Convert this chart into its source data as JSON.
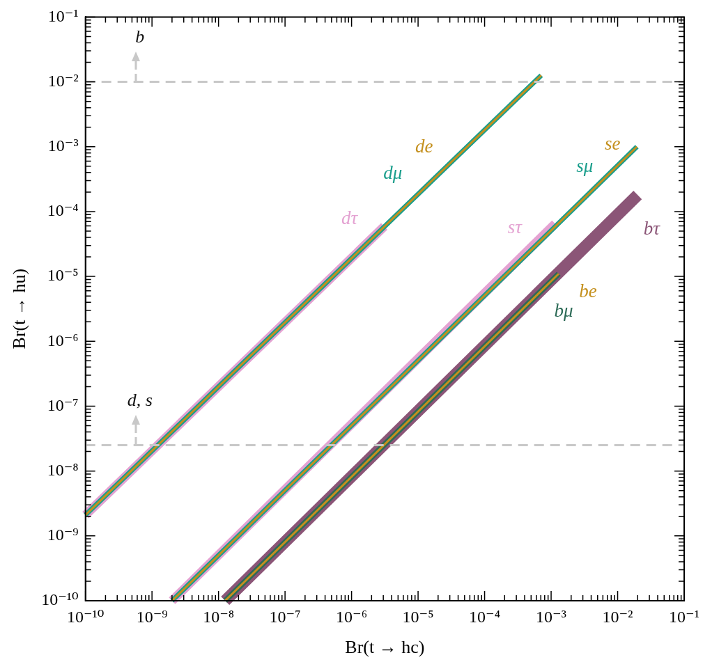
{
  "chart_data": {
    "type": "line",
    "xlabel": "Br(t → hc)",
    "ylabel": "Br(t → hu)",
    "log": "xy",
    "legend": false,
    "grid": false,
    "marker": "none",
    "line_style": "solid",
    "xlim": [
      1e-10,
      0.1
    ],
    "ylim": [
      1e-10,
      0.1
    ],
    "xticks": [
      {
        "value": 1e-10,
        "label": "10⁻¹⁰"
      },
      {
        "value": 1e-09,
        "label": "10⁻⁹"
      },
      {
        "value": 1e-08,
        "label": "10⁻⁸"
      },
      {
        "value": 1e-07,
        "label": "10⁻⁷"
      },
      {
        "value": 1e-06,
        "label": "10⁻⁶"
      },
      {
        "value": 1e-05,
        "label": "10⁻⁵"
      },
      {
        "value": 0.0001,
        "label": "10⁻⁴"
      },
      {
        "value": 0.001,
        "label": "10⁻³"
      },
      {
        "value": 0.01,
        "label": "10⁻²"
      },
      {
        "value": 0.1,
        "label": "10⁻¹"
      }
    ],
    "yticks": [
      {
        "value": 1e-10,
        "label": "10⁻¹⁰"
      },
      {
        "value": 1e-09,
        "label": "10⁻⁹"
      },
      {
        "value": 1e-08,
        "label": "10⁻⁸"
      },
      {
        "value": 1e-07,
        "label": "10⁻⁷"
      },
      {
        "value": 1e-06,
        "label": "10⁻⁶"
      },
      {
        "value": 1e-05,
        "label": "10⁻⁵"
      },
      {
        "value": 0.0001,
        "label": "10⁻⁴"
      },
      {
        "value": 0.001,
        "label": "10⁻³"
      },
      {
        "value": 0.01,
        "label": "10⁻²"
      },
      {
        "value": 0.1,
        "label": "10⁻¹"
      }
    ],
    "ref_lines": [
      {
        "axis": "y",
        "value": 0.01,
        "label": "b",
        "color": "#c8c8c8",
        "line_style": "dashed"
      },
      {
        "axis": "y",
        "value": 2.5e-08,
        "label": "d, s",
        "color": "#c8c8c8",
        "line_style": "dashed"
      }
    ],
    "series": [
      {
        "name": "dτ",
        "color": "#e4a2d2",
        "x": [
          1e-10,
          3.1e-06
        ],
        "values": [
          2.1e-09,
          5.9e-05
        ]
      },
      {
        "name": "sτ",
        "color": "#e4a2d2",
        "x": [
          2e-09,
          0.00115
        ],
        "values": [
          1e-10,
          6.5e-05
        ]
      },
      {
        "name": "bτ",
        "color": "#8b5577",
        "x": [
          1.26e-08,
          0.02
        ],
        "values": [
          1e-10,
          0.00018
        ]
      },
      {
        "name": "dμ",
        "color": "#1a9e8c",
        "x": [
          1e-10,
          0.00071
        ],
        "values": [
          2.1e-09,
          0.0126
        ]
      },
      {
        "name": "sμ",
        "color": "#1a9e8c",
        "x": [
          2e-09,
          0.0195
        ],
        "values": [
          1e-10,
          0.001
        ]
      },
      {
        "name": "bμ",
        "color": "#2d6b57",
        "x": [
          1.26e-08,
          0.0013
        ],
        "values": [
          1e-10,
          1.1e-05
        ]
      },
      {
        "name": "de",
        "color": "#c4901e",
        "x": [
          1e-10,
          0.00071
        ],
        "values": [
          2.1e-09,
          0.0126
        ]
      },
      {
        "name": "se",
        "color": "#c4901e",
        "x": [
          2e-09,
          0.0195
        ],
        "values": [
          1e-10,
          0.001
        ]
      },
      {
        "name": "be",
        "color": "#c4901e",
        "x": [
          1.26e-08,
          0.0013
        ],
        "values": [
          1e-10,
          1.1e-05
        ]
      }
    ]
  }
}
